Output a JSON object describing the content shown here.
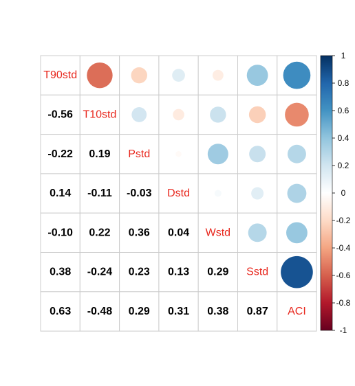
{
  "chart_data": {
    "type": "heatmap",
    "subtype": "correlation-matrix",
    "variables": [
      "T90std",
      "T10std",
      "Pstd",
      "Dstd",
      "Wstd",
      "Sstd",
      "ACI"
    ],
    "matrix": [
      [
        1.0,
        -0.56,
        -0.22,
        0.14,
        -0.1,
        0.38,
        0.63
      ],
      [
        -0.56,
        1.0,
        0.19,
        -0.11,
        0.22,
        -0.24,
        -0.48
      ],
      [
        -0.22,
        0.19,
        1.0,
        -0.03,
        0.36,
        0.23,
        0.29
      ],
      [
        0.14,
        -0.11,
        -0.03,
        1.0,
        0.04,
        0.13,
        0.31
      ],
      [
        -0.1,
        0.22,
        0.36,
        0.04,
        1.0,
        0.29,
        0.38
      ],
      [
        0.38,
        -0.24,
        0.23,
        0.13,
        0.29,
        1.0,
        0.87
      ],
      [
        0.63,
        -0.48,
        0.29,
        0.31,
        0.38,
        0.87,
        1.0
      ]
    ],
    "upper_triangle": "circle",
    "lower_triangle": "number",
    "diagonal": "variable-name",
    "number_labels": [
      [
        "-0.56"
      ],
      [
        "-0.22",
        "0.19"
      ],
      [
        "0.14",
        "-0.11",
        "-0.03"
      ],
      [
        "-0.10",
        "0.22",
        "0.36",
        "0.04"
      ],
      [
        "0.38",
        "-0.24",
        "0.23",
        "0.13",
        "0.29"
      ],
      [
        "0.63",
        "-0.48",
        "0.29",
        "0.31",
        "0.38",
        "0.87"
      ]
    ],
    "colorbar": {
      "range": [
        -1,
        1
      ],
      "ticks": [
        "1",
        "0.8",
        "0.6",
        "0.4",
        "0.2",
        "0",
        "-0.2",
        "-0.4",
        "-0.6",
        "-0.8",
        "-1"
      ],
      "position": "right"
    },
    "colors": {
      "label": "#e8281e",
      "grid": "#cccccc",
      "scale": [
        "#67001F",
        "#B2182B",
        "#D6604D",
        "#F4A582",
        "#FDDBC7",
        "#FFFFFF",
        "#D1E5F0",
        "#92C5DE",
        "#4393C3",
        "#2166AC",
        "#053061"
      ]
    }
  }
}
